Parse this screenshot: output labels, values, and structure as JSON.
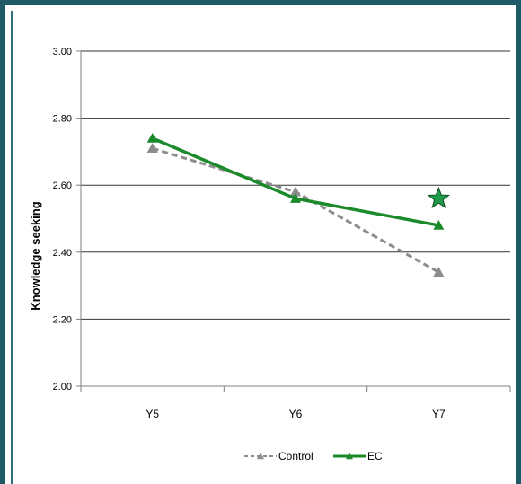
{
  "chart_data": {
    "type": "line",
    "title": "",
    "xlabel": "",
    "ylabel": "Knowledge seeking",
    "categories": [
      "Y5",
      "Y6",
      "Y7"
    ],
    "ylim": [
      2.0,
      3.0
    ],
    "yticks": [
      "2.00",
      "2.20",
      "2.40",
      "2.60",
      "2.80",
      "3.00"
    ],
    "grid": "horizontal",
    "legend_position": "bottom",
    "series": [
      {
        "name": "Control",
        "values": [
          2.71,
          2.58,
          2.34
        ],
        "color": "#8c8c8c",
        "style": "dashed",
        "marker": "triangle"
      },
      {
        "name": "EC",
        "values": [
          2.74,
          2.56,
          2.48
        ],
        "color": "#1a8a2a",
        "style": "solid",
        "marker": "triangle"
      }
    ],
    "annotation": {
      "type": "star",
      "category": "Y7",
      "value": 2.56,
      "color": "#1e9a4a",
      "icon": "star-icon"
    }
  }
}
